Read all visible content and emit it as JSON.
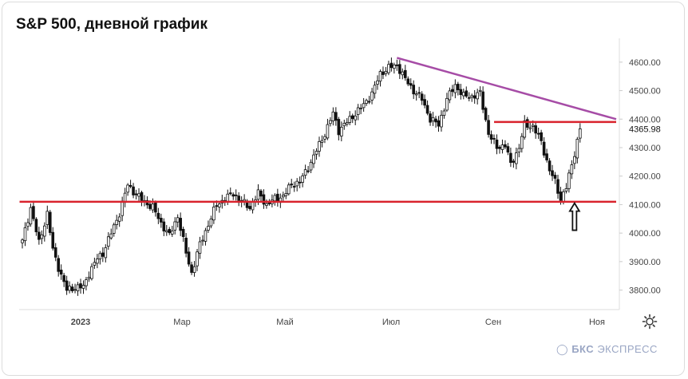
{
  "header": {
    "title": "S&P 500, дневной график"
  },
  "chart_data": {
    "type": "candlestick",
    "title": "S&P 500, дневной график",
    "ylim": [
      3740,
      4650
    ],
    "y_ticks": [
      "3800.00",
      "3900.00",
      "4000.00",
      "4100.00",
      "4200.00",
      "4300.00",
      "4400.00",
      "4500.00",
      "4600.00"
    ],
    "x_ticks": [
      "2023",
      "Мар",
      "Май",
      "Июл",
      "Сен",
      "Ноя"
    ],
    "last_value_label": "4365.98",
    "anchors": [
      [
        0,
        3970
      ],
      [
        3,
        4090
      ],
      [
        6,
        3965
      ],
      [
        9,
        4070
      ],
      [
        11,
        3940
      ],
      [
        13,
        3880
      ],
      [
        16,
        3800
      ],
      [
        19,
        3810
      ],
      [
        22,
        3810
      ],
      [
        24,
        3860
      ],
      [
        27,
        3910
      ],
      [
        29,
        3930
      ],
      [
        32,
        4000
      ],
      [
        35,
        4070
      ],
      [
        38,
        4170
      ],
      [
        41,
        4135
      ],
      [
        44,
        4110
      ],
      [
        47,
        4090
      ],
      [
        50,
        4035
      ],
      [
        53,
        3990
      ],
      [
        56,
        4060
      ],
      [
        59,
        3930
      ],
      [
        61,
        3860
      ],
      [
        64,
        3960
      ],
      [
        67,
        4030
      ],
      [
        70,
        4100
      ],
      [
        73,
        4120
      ],
      [
        76,
        4140
      ],
      [
        79,
        4110
      ],
      [
        82,
        4090
      ],
      [
        85,
        4140
      ],
      [
        88,
        4100
      ],
      [
        91,
        4120
      ],
      [
        94,
        4130
      ],
      [
        97,
        4170
      ],
      [
        100,
        4180
      ],
      [
        103,
        4230
      ],
      [
        106,
        4290
      ],
      [
        109,
        4350
      ],
      [
        112,
        4420
      ],
      [
        114,
        4360
      ],
      [
        117,
        4390
      ],
      [
        120,
        4420
      ],
      [
        123,
        4450
      ],
      [
        126,
        4490
      ],
      [
        129,
        4560
      ],
      [
        132,
        4580
      ],
      [
        135,
        4590
      ],
      [
        138,
        4540
      ],
      [
        141,
        4500
      ],
      [
        144,
        4470
      ],
      [
        147,
        4400
      ],
      [
        150,
        4380
      ],
      [
        153,
        4470
      ],
      [
        156,
        4520
      ],
      [
        159,
        4480
      ],
      [
        162,
        4480
      ],
      [
        165,
        4490
      ],
      [
        168,
        4350
      ],
      [
        171,
        4300
      ],
      [
        174,
        4310
      ],
      [
        176,
        4240
      ],
      [
        179,
        4300
      ],
      [
        181,
        4380
      ],
      [
        184,
        4375
      ],
      [
        187,
        4320
      ],
      [
        190,
        4220
      ],
      [
        192,
        4180
      ],
      [
        194,
        4120
      ],
      [
        196,
        4160
      ],
      [
        198,
        4240
      ],
      [
        201,
        4365.98
      ]
    ],
    "lines": [
      {
        "name": "",
        "color": "#a64ca6",
        "from": [
          135,
          4615
        ],
        "to": [
          214,
          4400
        ]
      },
      {
        "name": "",
        "color": "#d9232d",
        "from": [
          -1,
          4110
        ],
        "to": [
          214,
          4110
        ]
      },
      {
        "name": "",
        "color": "#d9232d",
        "from": [
          170,
          4390
        ],
        "to": [
          214,
          4390
        ]
      }
    ],
    "annotation": {
      "type": "arrow-up",
      "x": 199,
      "y_top": 4105,
      "y_bottom": 4010
    }
  },
  "watermark": {
    "brand": "БКС",
    "text": "ЭКСПРЕСС"
  }
}
